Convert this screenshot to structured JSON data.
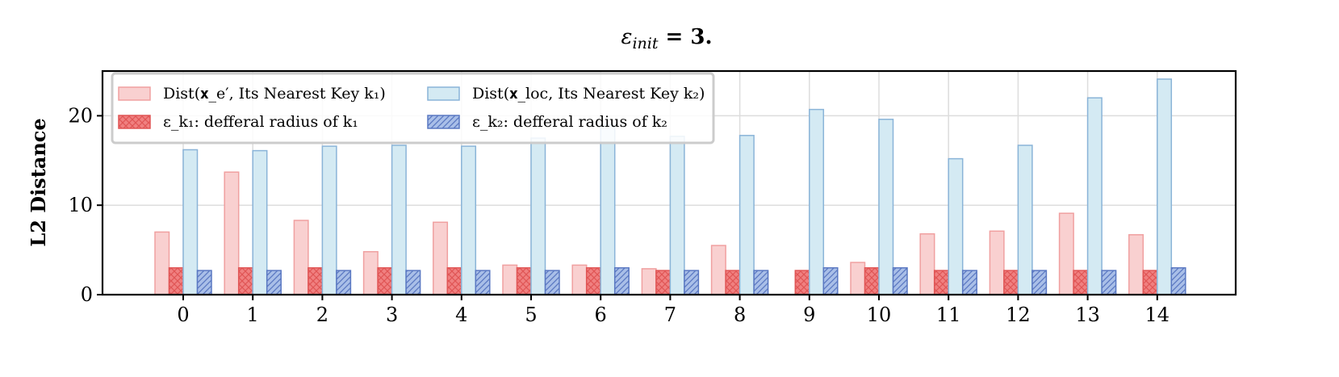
{
  "chart_data": {
    "type": "bar",
    "title": "ε_init = 3.",
    "title_parts": {
      "symbol": "ε",
      "subscript": "init",
      "rest": " = 3."
    },
    "xlabel": "",
    "ylabel": "L2 Distance",
    "ylim": [
      0,
      25
    ],
    "yticks": [
      0,
      10,
      20
    ],
    "categories": [
      "0",
      "1",
      "2",
      "3",
      "4",
      "5",
      "6",
      "7",
      "8",
      "9",
      "10",
      "11",
      "12",
      "13",
      "14"
    ],
    "grid": true,
    "legend_position": "upper-left",
    "series": [
      {
        "name": "Dist(x_e', Its Nearest Key k_1)",
        "legend_label": "Dist(𝐱_e′, Its Nearest Key k₁)",
        "style": "solid",
        "fill": "#f9d0d0",
        "edge": "#f0a0a0",
        "values": [
          7.0,
          13.7,
          8.3,
          4.8,
          8.1,
          3.3,
          3.3,
          2.9,
          5.5,
          0,
          3.6,
          6.8,
          7.1,
          9.1,
          6.7
        ]
      },
      {
        "name": "ε_k1: defferal radius of k_1",
        "legend_label": "ε_k₁: defferal radius of k₁",
        "style": "crosshatch",
        "fill": "#f08080",
        "edge": "#e05555",
        "values": [
          3.0,
          3.0,
          3.0,
          3.0,
          3.0,
          3.0,
          3.0,
          2.7,
          2.7,
          2.7,
          3.0,
          2.7,
          2.7,
          2.7,
          2.7
        ]
      },
      {
        "name": "Dist(x_loc, Its Nearest Key k_2)",
        "legend_label": "Dist(𝐱_loc, Its Nearest Key k₂)",
        "style": "solid",
        "fill": "#d4eaf3",
        "edge": "#8ab4d8",
        "values": [
          16.2,
          16.1,
          16.6,
          16.7,
          16.6,
          17.5,
          19.0,
          17.7,
          17.8,
          20.7,
          19.6,
          15.2,
          16.7,
          22.0,
          24.1
        ]
      },
      {
        "name": "ε_k2: defferal radius of k_2",
        "legend_label": "ε_k₂: defferal radius of k₂",
        "style": "diagonal",
        "fill": "#a9bfe8",
        "edge": "#5a78c2",
        "values": [
          2.7,
          2.7,
          2.7,
          2.7,
          2.7,
          2.7,
          3.0,
          2.7,
          2.7,
          3.0,
          3.0,
          2.7,
          2.7,
          2.7,
          3.0
        ]
      }
    ]
  }
}
